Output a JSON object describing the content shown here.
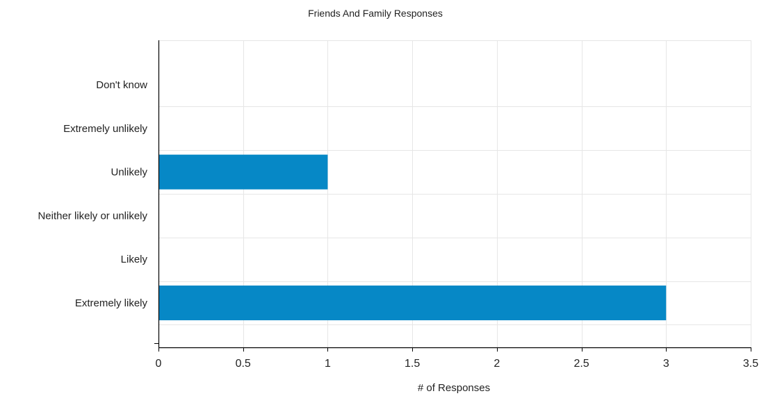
{
  "chart_data": {
    "type": "bar",
    "orientation": "horizontal",
    "title": "Friends And Family Responses",
    "xlabel": "# of Responses",
    "ylabel": "",
    "categories": [
      "Don't know",
      "Extremely unlikely",
      "Unlikely",
      "Neither likely or unlikely",
      "Likely",
      "Extremely likely"
    ],
    "values": [
      0,
      0,
      1,
      0,
      0,
      3
    ],
    "xlim": [
      0,
      3.5
    ],
    "xticks": [
      0,
      0.5,
      1,
      1.5,
      2,
      2.5,
      3,
      3.5
    ],
    "xtick_labels": [
      "0",
      "0.5",
      "1",
      "1.5",
      "2",
      "2.5",
      "3",
      "3.5"
    ],
    "grid": true,
    "legend": "none",
    "bar_color": "#0688c6",
    "grid_color": "#e6e6e6",
    "axis_color": "#000000"
  }
}
